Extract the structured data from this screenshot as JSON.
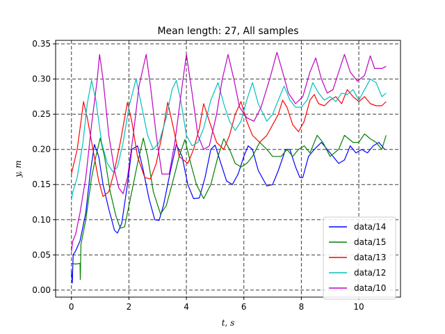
{
  "chart_data": {
    "type": "line",
    "title": "Mean length: 27, All samples",
    "xlabel": "t, s",
    "ylabel": "y, m",
    "xlim": [
      -0.55,
      11.45
    ],
    "ylim": [
      -0.01,
      0.355
    ],
    "xticks": [
      0,
      2,
      4,
      6,
      8,
      10
    ],
    "xtick_labels": [
      "0",
      "2",
      "4",
      "6",
      "8",
      "10"
    ],
    "yticks": [
      0.0,
      0.05,
      0.1,
      0.15,
      0.2,
      0.25,
      0.3,
      0.35
    ],
    "ytick_labels": [
      "0.00",
      "0.05",
      "0.10",
      "0.15",
      "0.20",
      "0.25",
      "0.30",
      "0.35"
    ],
    "grid": true,
    "grid_style": "dashed",
    "legend_position": "lower-right",
    "series": [
      {
        "name": "data/14",
        "color": "#0000ff",
        "points": [
          [
            0,
            0.027
          ],
          [
            0.03,
            0.01
          ],
          [
            0.06,
            0.05
          ],
          [
            0.15,
            0.056
          ],
          [
            0.3,
            0.07
          ],
          [
            0.5,
            0.11
          ],
          [
            0.65,
            0.165
          ],
          [
            0.8,
            0.207
          ],
          [
            0.95,
            0.19
          ],
          [
            1.1,
            0.15
          ],
          [
            1.3,
            0.115
          ],
          [
            1.5,
            0.085
          ],
          [
            1.6,
            0.081
          ],
          [
            1.75,
            0.095
          ],
          [
            1.95,
            0.15
          ],
          [
            2.1,
            0.2
          ],
          [
            2.3,
            0.205
          ],
          [
            2.5,
            0.17
          ],
          [
            2.7,
            0.13
          ],
          [
            2.9,
            0.1
          ],
          [
            3.05,
            0.099
          ],
          [
            3.2,
            0.12
          ],
          [
            3.45,
            0.17
          ],
          [
            3.65,
            0.207
          ],
          [
            3.85,
            0.19
          ],
          [
            4.05,
            0.15
          ],
          [
            4.25,
            0.13
          ],
          [
            4.45,
            0.131
          ],
          [
            4.65,
            0.16
          ],
          [
            4.85,
            0.2
          ],
          [
            5.0,
            0.206
          ],
          [
            5.2,
            0.18
          ],
          [
            5.4,
            0.155
          ],
          [
            5.6,
            0.15
          ],
          [
            5.8,
            0.165
          ],
          [
            6.0,
            0.19
          ],
          [
            6.15,
            0.205
          ],
          [
            6.3,
            0.2
          ],
          [
            6.5,
            0.17
          ],
          [
            6.8,
            0.148
          ],
          [
            7.0,
            0.15
          ],
          [
            7.2,
            0.17
          ],
          [
            7.45,
            0.2
          ],
          [
            7.6,
            0.2
          ],
          [
            7.8,
            0.175
          ],
          [
            7.95,
            0.16
          ],
          [
            8.05,
            0.16
          ],
          [
            8.25,
            0.19
          ],
          [
            8.45,
            0.2
          ],
          [
            8.7,
            0.21
          ],
          [
            8.9,
            0.2
          ],
          [
            9.1,
            0.19
          ],
          [
            9.3,
            0.18
          ],
          [
            9.5,
            0.185
          ],
          [
            9.7,
            0.205
          ],
          [
            9.9,
            0.195
          ],
          [
            10.1,
            0.2
          ],
          [
            10.3,
            0.195
          ],
          [
            10.5,
            0.205
          ],
          [
            10.7,
            0.21
          ],
          [
            10.9,
            0.2
          ]
        ]
      },
      {
        "name": "data/15",
        "color": "#008000",
        "points": [
          [
            0,
            0.038
          ],
          [
            0.15,
            0.037
          ],
          [
            0.3,
            0.038
          ],
          [
            0.31,
            0.015
          ],
          [
            0.33,
            0.065
          ],
          [
            0.5,
            0.1
          ],
          [
            0.7,
            0.16
          ],
          [
            0.85,
            0.19
          ],
          [
            1.0,
            0.216
          ],
          [
            1.15,
            0.19
          ],
          [
            1.35,
            0.14
          ],
          [
            1.55,
            0.105
          ],
          [
            1.7,
            0.088
          ],
          [
            1.85,
            0.09
          ],
          [
            2.05,
            0.13
          ],
          [
            2.3,
            0.18
          ],
          [
            2.5,
            0.216
          ],
          [
            2.65,
            0.19
          ],
          [
            2.85,
            0.14
          ],
          [
            3.1,
            0.108
          ],
          [
            3.3,
            0.12
          ],
          [
            3.5,
            0.15
          ],
          [
            3.75,
            0.19
          ],
          [
            3.95,
            0.214
          ],
          [
            4.15,
            0.18
          ],
          [
            4.35,
            0.15
          ],
          [
            4.6,
            0.13
          ],
          [
            4.85,
            0.15
          ],
          [
            5.1,
            0.19
          ],
          [
            5.3,
            0.215
          ],
          [
            5.5,
            0.2
          ],
          [
            5.7,
            0.18
          ],
          [
            5.9,
            0.175
          ],
          [
            6.1,
            0.18
          ],
          [
            6.3,
            0.19
          ],
          [
            6.55,
            0.21
          ],
          [
            6.8,
            0.2
          ],
          [
            7.0,
            0.19
          ],
          [
            7.3,
            0.19
          ],
          [
            7.5,
            0.2
          ],
          [
            7.7,
            0.19
          ],
          [
            7.9,
            0.2
          ],
          [
            8.1,
            0.205
          ],
          [
            8.3,
            0.195
          ],
          [
            8.55,
            0.22
          ],
          [
            8.75,
            0.21
          ],
          [
            9.0,
            0.19
          ],
          [
            9.3,
            0.2
          ],
          [
            9.5,
            0.22
          ],
          [
            9.8,
            0.21
          ],
          [
            10.0,
            0.21
          ],
          [
            10.2,
            0.222
          ],
          [
            10.4,
            0.215
          ],
          [
            10.6,
            0.21
          ],
          [
            10.8,
            0.2
          ],
          [
            10.95,
            0.22
          ]
        ]
      },
      {
        "name": "data/13",
        "color": "#ff0000",
        "points": [
          [
            0,
            0.165
          ],
          [
            0.2,
            0.2
          ],
          [
            0.35,
            0.245
          ],
          [
            0.42,
            0.268
          ],
          [
            0.55,
            0.245
          ],
          [
            0.75,
            0.2
          ],
          [
            0.95,
            0.155
          ],
          [
            1.1,
            0.133
          ],
          [
            1.3,
            0.14
          ],
          [
            1.5,
            0.17
          ],
          [
            1.7,
            0.21
          ],
          [
            1.95,
            0.267
          ],
          [
            2.1,
            0.24
          ],
          [
            2.3,
            0.19
          ],
          [
            2.55,
            0.16
          ],
          [
            2.75,
            0.158
          ],
          [
            2.95,
            0.18
          ],
          [
            3.2,
            0.23
          ],
          [
            3.35,
            0.267
          ],
          [
            3.55,
            0.23
          ],
          [
            3.75,
            0.19
          ],
          [
            4.05,
            0.18
          ],
          [
            4.25,
            0.2
          ],
          [
            4.45,
            0.23
          ],
          [
            4.6,
            0.265
          ],
          [
            4.8,
            0.24
          ],
          [
            5.05,
            0.21
          ],
          [
            5.3,
            0.2
          ],
          [
            5.5,
            0.22
          ],
          [
            5.7,
            0.25
          ],
          [
            5.9,
            0.268
          ],
          [
            6.1,
            0.24
          ],
          [
            6.3,
            0.22
          ],
          [
            6.55,
            0.21
          ],
          [
            6.8,
            0.22
          ],
          [
            7.0,
            0.235
          ],
          [
            7.2,
            0.25
          ],
          [
            7.35,
            0.27
          ],
          [
            7.5,
            0.26
          ],
          [
            7.7,
            0.235
          ],
          [
            7.9,
            0.225
          ],
          [
            8.1,
            0.24
          ],
          [
            8.3,
            0.27
          ],
          [
            8.45,
            0.278
          ],
          [
            8.6,
            0.265
          ],
          [
            8.8,
            0.262
          ],
          [
            9.0,
            0.27
          ],
          [
            9.2,
            0.275
          ],
          [
            9.4,
            0.265
          ],
          [
            9.6,
            0.285
          ],
          [
            9.8,
            0.275
          ],
          [
            10.0,
            0.268
          ],
          [
            10.2,
            0.275
          ],
          [
            10.4,
            0.265
          ],
          [
            10.6,
            0.262
          ],
          [
            10.8,
            0.262
          ],
          [
            10.95,
            0.268
          ]
        ]
      },
      {
        "name": "data/12",
        "color": "#00bfbf",
        "points": [
          [
            0,
            0.128
          ],
          [
            0.05,
            0.14
          ],
          [
            0.2,
            0.16
          ],
          [
            0.4,
            0.21
          ],
          [
            0.55,
            0.265
          ],
          [
            0.7,
            0.298
          ],
          [
            0.85,
            0.27
          ],
          [
            1.05,
            0.21
          ],
          [
            1.25,
            0.18
          ],
          [
            1.45,
            0.168
          ],
          [
            1.6,
            0.175
          ],
          [
            1.8,
            0.21
          ],
          [
            2.0,
            0.26
          ],
          [
            2.25,
            0.3
          ],
          [
            2.45,
            0.26
          ],
          [
            2.65,
            0.22
          ],
          [
            2.85,
            0.2
          ],
          [
            3.05,
            0.21
          ],
          [
            3.3,
            0.245
          ],
          [
            3.5,
            0.285
          ],
          [
            3.65,
            0.298
          ],
          [
            3.8,
            0.27
          ],
          [
            4.0,
            0.22
          ],
          [
            4.2,
            0.205
          ],
          [
            4.4,
            0.21
          ],
          [
            4.6,
            0.23
          ],
          [
            4.85,
            0.27
          ],
          [
            5.1,
            0.295
          ],
          [
            5.3,
            0.265
          ],
          [
            5.5,
            0.24
          ],
          [
            5.7,
            0.227
          ],
          [
            5.9,
            0.24
          ],
          [
            6.1,
            0.27
          ],
          [
            6.3,
            0.295
          ],
          [
            6.5,
            0.265
          ],
          [
            6.8,
            0.24
          ],
          [
            7.0,
            0.25
          ],
          [
            7.2,
            0.27
          ],
          [
            7.4,
            0.29
          ],
          [
            7.6,
            0.27
          ],
          [
            7.8,
            0.26
          ],
          [
            8.0,
            0.26
          ],
          [
            8.2,
            0.27
          ],
          [
            8.4,
            0.295
          ],
          [
            8.6,
            0.28
          ],
          [
            8.8,
            0.27
          ],
          [
            9.0,
            0.275
          ],
          [
            9.2,
            0.268
          ],
          [
            9.4,
            0.28
          ],
          [
            9.6,
            0.278
          ],
          [
            9.8,
            0.285
          ],
          [
            10.0,
            0.27
          ],
          [
            10.2,
            0.285
          ],
          [
            10.4,
            0.3
          ],
          [
            10.6,
            0.295
          ],
          [
            10.8,
            0.275
          ],
          [
            10.95,
            0.28
          ]
        ]
      },
      {
        "name": "data/10",
        "color": "#bf00bf",
        "points": [
          [
            0,
            0.055
          ],
          [
            0.05,
            0.07
          ],
          [
            0.15,
            0.08
          ],
          [
            0.3,
            0.11
          ],
          [
            0.5,
            0.16
          ],
          [
            0.7,
            0.235
          ],
          [
            0.9,
            0.3
          ],
          [
            0.98,
            0.335
          ],
          [
            1.1,
            0.3
          ],
          [
            1.3,
            0.22
          ],
          [
            1.5,
            0.17
          ],
          [
            1.65,
            0.145
          ],
          [
            1.8,
            0.137
          ],
          [
            1.95,
            0.16
          ],
          [
            2.15,
            0.22
          ],
          [
            2.35,
            0.29
          ],
          [
            2.6,
            0.335
          ],
          [
            2.75,
            0.29
          ],
          [
            2.95,
            0.22
          ],
          [
            3.15,
            0.165
          ],
          [
            3.4,
            0.165
          ],
          [
            3.6,
            0.21
          ],
          [
            3.85,
            0.29
          ],
          [
            4.0,
            0.335
          ],
          [
            4.2,
            0.28
          ],
          [
            4.4,
            0.22
          ],
          [
            4.6,
            0.2
          ],
          [
            4.8,
            0.205
          ],
          [
            5.05,
            0.25
          ],
          [
            5.25,
            0.3
          ],
          [
            5.45,
            0.335
          ],
          [
            5.65,
            0.3
          ],
          [
            5.85,
            0.26
          ],
          [
            6.1,
            0.245
          ],
          [
            6.35,
            0.24
          ],
          [
            6.6,
            0.26
          ],
          [
            6.9,
            0.3
          ],
          [
            7.15,
            0.338
          ],
          [
            7.35,
            0.31
          ],
          [
            7.55,
            0.28
          ],
          [
            7.8,
            0.265
          ],
          [
            8.05,
            0.275
          ],
          [
            8.3,
            0.31
          ],
          [
            8.5,
            0.33
          ],
          [
            8.7,
            0.3
          ],
          [
            8.9,
            0.28
          ],
          [
            9.1,
            0.285
          ],
          [
            9.3,
            0.31
          ],
          [
            9.5,
            0.335
          ],
          [
            9.7,
            0.31
          ],
          [
            9.95,
            0.297
          ],
          [
            10.2,
            0.305
          ],
          [
            10.4,
            0.333
          ],
          [
            10.55,
            0.315
          ],
          [
            10.8,
            0.315
          ],
          [
            10.95,
            0.318
          ]
        ]
      }
    ]
  }
}
